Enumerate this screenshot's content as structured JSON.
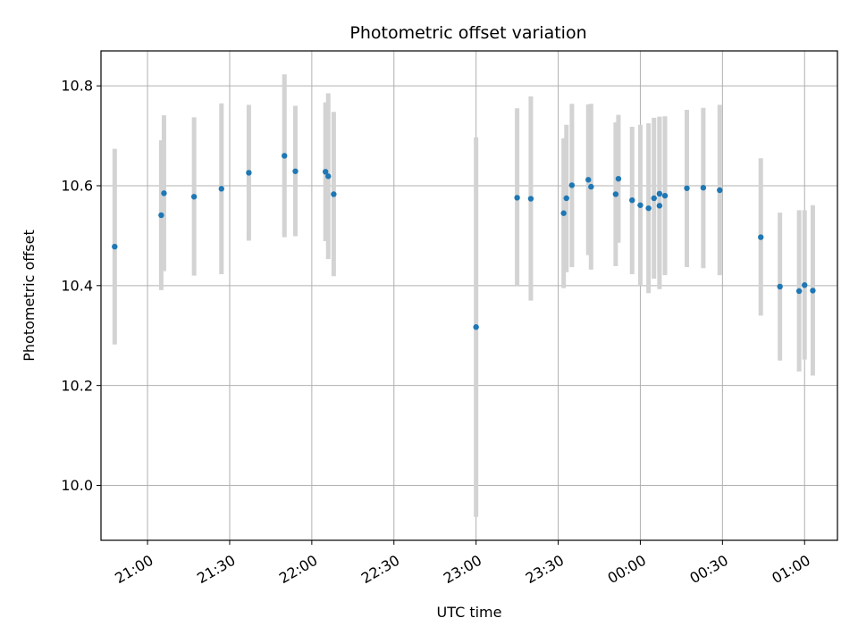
{
  "chart_data": {
    "type": "scatter",
    "title": "Photometric offset variation",
    "xlabel": "UTC time",
    "ylabel": "Photometric offset",
    "x_axis_kind": "time",
    "x_tick_labels": [
      "21:00",
      "21:30",
      "22:00",
      "22:30",
      "23:00",
      "23:30",
      "00:00",
      "00:30",
      "01:00"
    ],
    "x_tick_times": [
      "21:00",
      "21:30",
      "22:00",
      "22:30",
      "23:00",
      "23:30",
      "24:00",
      "24:30",
      "25:00"
    ],
    "xlim": [
      "20:43",
      "25:12"
    ],
    "y_tick_labels": [
      "10.0",
      "10.2",
      "10.4",
      "10.6",
      "10.8"
    ],
    "y_ticks": [
      10.0,
      10.2,
      10.4,
      10.6,
      10.8
    ],
    "ylim": [
      9.89,
      10.87
    ],
    "grid": true,
    "point_color": "#1f77b4",
    "errorbar_color": "#d3d3d3",
    "series": [
      {
        "points": [
          {
            "time": "20:48",
            "y": 10.478,
            "lo": 10.282,
            "hi": 10.674
          },
          {
            "time": "21:05",
            "y": 10.541,
            "lo": 10.391,
            "hi": 10.691
          },
          {
            "time": "21:06",
            "y": 10.585,
            "lo": 10.429,
            "hi": 10.741
          },
          {
            "time": "21:17",
            "y": 10.578,
            "lo": 10.42,
            "hi": 10.737
          },
          {
            "time": "21:27",
            "y": 10.594,
            "lo": 10.423,
            "hi": 10.765
          },
          {
            "time": "21:37",
            "y": 10.626,
            "lo": 10.49,
            "hi": 10.762
          },
          {
            "time": "21:50",
            "y": 10.66,
            "lo": 10.497,
            "hi": 10.823
          },
          {
            "time": "21:54",
            "y": 10.629,
            "lo": 10.499,
            "hi": 10.76
          },
          {
            "time": "22:05",
            "y": 10.628,
            "lo": 10.489,
            "hi": 10.767
          },
          {
            "time": "22:06",
            "y": 10.619,
            "lo": 10.453,
            "hi": 10.785
          },
          {
            "time": "22:08",
            "y": 10.583,
            "lo": 10.419,
            "hi": 10.748
          },
          {
            "time": "23:00",
            "y": 10.317,
            "lo": 9.937,
            "hi": 10.697
          },
          {
            "time": "23:15",
            "y": 10.576,
            "lo": 10.4,
            "hi": 10.755
          },
          {
            "time": "23:20",
            "y": 10.574,
            "lo": 10.37,
            "hi": 10.779
          },
          {
            "time": "23:32",
            "y": 10.545,
            "lo": 10.395,
            "hi": 10.695
          },
          {
            "time": "23:33",
            "y": 10.575,
            "lo": 10.427,
            "hi": 10.722
          },
          {
            "time": "23:35",
            "y": 10.601,
            "lo": 10.437,
            "hi": 10.764
          },
          {
            "time": "23:41",
            "y": 10.612,
            "lo": 10.461,
            "hi": 10.763
          },
          {
            "time": "23:42",
            "y": 10.598,
            "lo": 10.432,
            "hi": 10.764
          },
          {
            "time": "23:51",
            "y": 10.583,
            "lo": 10.439,
            "hi": 10.727
          },
          {
            "time": "23:52",
            "y": 10.614,
            "lo": 10.486,
            "hi": 10.742
          },
          {
            "time": "23:57",
            "y": 10.571,
            "lo": 10.423,
            "hi": 10.718
          },
          {
            "time": "24:00",
            "y": 10.561,
            "lo": 10.4,
            "hi": 10.722
          },
          {
            "time": "24:03",
            "y": 10.555,
            "lo": 10.385,
            "hi": 10.725
          },
          {
            "time": "24:05",
            "y": 10.575,
            "lo": 10.414,
            "hi": 10.736
          },
          {
            "time": "24:07",
            "y": 10.56,
            "lo": 10.393,
            "hi": 10.738
          },
          {
            "time": "24:07",
            "y": 10.584,
            "lo": 10.43,
            "hi": 10.738
          },
          {
            "time": "24:09",
            "y": 10.58,
            "lo": 10.421,
            "hi": 10.739
          },
          {
            "time": "24:17",
            "y": 10.595,
            "lo": 10.437,
            "hi": 10.752
          },
          {
            "time": "24:23",
            "y": 10.596,
            "lo": 10.435,
            "hi": 10.756
          },
          {
            "time": "24:29",
            "y": 10.591,
            "lo": 10.421,
            "hi": 10.762
          },
          {
            "time": "24:44",
            "y": 10.497,
            "lo": 10.34,
            "hi": 10.655
          },
          {
            "time": "24:51",
            "y": 10.398,
            "lo": 10.25,
            "hi": 10.546
          },
          {
            "time": "24:58",
            "y": 10.389,
            "lo": 10.228,
            "hi": 10.551
          },
          {
            "time": "25:00",
            "y": 10.401,
            "lo": 10.252,
            "hi": 10.551
          },
          {
            "time": "25:03",
            "y": 10.39,
            "lo": 10.22,
            "hi": 10.561
          }
        ]
      }
    ]
  }
}
